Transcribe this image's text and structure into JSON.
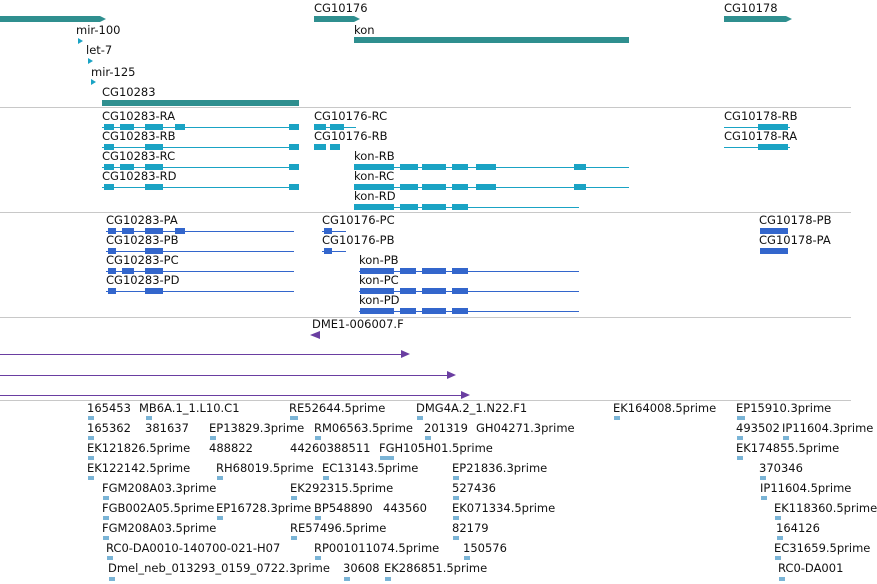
{
  "colors": {
    "gene": "#2f8f8f",
    "transcript_cyan": "#1aa3c4",
    "transcript_blue": "#3366cc",
    "feature_purple": "#6a3ea1",
    "est": "#7ab4d6",
    "separator": "#c8c8c8"
  },
  "icons": [
    "arrow-right-icon",
    "arrow-left-icon"
  ],
  "genes": {
    "top_labels": [
      "CG10176",
      "CG10178"
    ],
    "mir100": "mir-100",
    "kon": "kon",
    "let7": "let-7",
    "mir125": "mir-125",
    "cg10283": "CG10283"
  },
  "transcripts_rna": {
    "cg10283": [
      "CG10283-RA",
      "CG10283-RB",
      "CG10283-RC",
      "CG10283-RD"
    ],
    "cg10176": [
      "CG10176-RC",
      "CG10176-RB"
    ],
    "kon": [
      "kon-RB",
      "kon-RC",
      "kon-RD"
    ],
    "cg10178": [
      "CG10178-RB",
      "CG10178-RA"
    ]
  },
  "transcripts_protein": {
    "cg10283": [
      "CG10283-PA",
      "CG10283-PB",
      "CG10283-PC",
      "CG10283-PD"
    ],
    "cg10176": [
      "CG10176-PC",
      "CG10176-PB"
    ],
    "kon": [
      "kon-PB",
      "kon-PC",
      "kon-PD"
    ],
    "cg10178": [
      "CG10178-PB",
      "CG10178-PA"
    ]
  },
  "features": {
    "dme": "DME1-006007.F"
  },
  "ests": [
    "165453",
    "MB6A.1_1.L10.C1",
    "RE52644.5prime",
    "DMG4A.2_1.N22.F1",
    "EK164008.5prime",
    "EP15910.3prime",
    "165362",
    "381637",
    "EP13829.3prime",
    "RM06563.5prime",
    "201319",
    "GH04271.3prime",
    "493502",
    "IP11604.3prime",
    "EK121826.5prime",
    "488822",
    "44260388511",
    "FGH105H01.5prime",
    "EK174855.5prime",
    "EK122142.5prime",
    "RH68019.5prime",
    "EC13143.5prime",
    "EP21836.3prime",
    "370346",
    "FGM208A03.3prime",
    "EK292315.5prime",
    "527436",
    "IP11604.5prime",
    "FGB002A05.5prime",
    "EP16728.3prime",
    "BP548890",
    "443560",
    "EK071334.5prime",
    "EK118360.5prime",
    "FGM208A03.5prime",
    "RE57496.5prime",
    "82179",
    "164126",
    "RC0-DA0010-140700-021-H07",
    "RP001011074.5prime",
    "150576",
    "EC31659.5prime",
    "Dmel_neb_013293_0159_0722.3prime",
    "30608",
    "EK286851.5prime",
    "RC0-DA001"
  ]
}
